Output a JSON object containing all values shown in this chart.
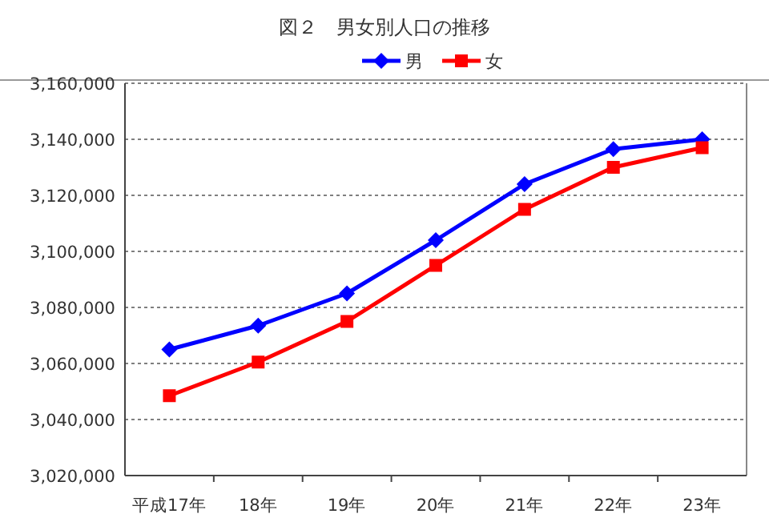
{
  "chart_data": {
    "type": "line",
    "title": "図２　男女別人口の推移",
    "categories": [
      "平成17年",
      "18年",
      "19年",
      "20年",
      "21年",
      "22年",
      "23年"
    ],
    "series": [
      {
        "name": "男",
        "color": "#0000ff",
        "marker": "diamond",
        "values": [
          3065000,
          3073500,
          3085000,
          3104000,
          3124000,
          3136500,
          3140000
        ]
      },
      {
        "name": "女",
        "color": "#ff0000",
        "marker": "square",
        "values": [
          3048500,
          3060500,
          3075000,
          3095000,
          3115000,
          3130000,
          3137000
        ]
      }
    ],
    "ylim": [
      3020000,
      3160000
    ],
    "yticks": [
      {
        "value": 3020000,
        "label": "3,020,000"
      },
      {
        "value": 3040000,
        "label": "3,040,000"
      },
      {
        "value": 3060000,
        "label": "3,060,000"
      },
      {
        "value": 3080000,
        "label": "3,080,000"
      },
      {
        "value": 3100000,
        "label": "3,100,000"
      },
      {
        "value": 3120000,
        "label": "3,120,000"
      },
      {
        "value": 3140000,
        "label": "3,140,000"
      },
      {
        "value": 3160000,
        "label": "3,160,000"
      }
    ],
    "grid": "y",
    "legend": "top",
    "line_style": "solid"
  }
}
